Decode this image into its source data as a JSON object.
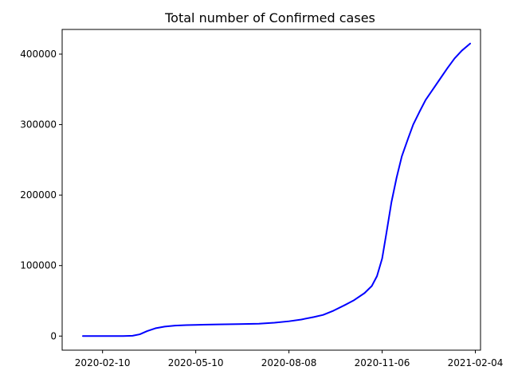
{
  "chart_data": {
    "type": "line",
    "title": "Total number of Confirmed cases",
    "xlabel": "",
    "ylabel": "",
    "x_is_date": true,
    "xlim": [
      "2020-01-02",
      "2021-02-09"
    ],
    "ylim": [
      -20000,
      435000
    ],
    "x_ticks": [
      "2020-02-10",
      "2020-05-10",
      "2020-08-08",
      "2020-11-06",
      "2021-02-04"
    ],
    "y_ticks": [
      0,
      100000,
      200000,
      300000,
      400000
    ],
    "y_tick_labels": [
      "0",
      "100000",
      "200000",
      "300000",
      "400000"
    ],
    "grid": false,
    "legend": "none",
    "series": [
      {
        "color": "#0000ff",
        "points": [
          [
            "2020-01-22",
            0
          ],
          [
            "2020-02-10",
            50
          ],
          [
            "2020-03-01",
            100
          ],
          [
            "2020-03-10",
            500
          ],
          [
            "2020-03-17",
            2500
          ],
          [
            "2020-03-24",
            7000
          ],
          [
            "2020-04-01",
            11000
          ],
          [
            "2020-04-10",
            13500
          ],
          [
            "2020-04-20",
            14800
          ],
          [
            "2020-05-01",
            15500
          ],
          [
            "2020-05-10",
            15900
          ],
          [
            "2020-06-01",
            16500
          ],
          [
            "2020-06-20",
            17000
          ],
          [
            "2020-07-10",
            17500
          ],
          [
            "2020-07-25",
            19000
          ],
          [
            "2020-08-08",
            21000
          ],
          [
            "2020-08-20",
            23500
          ],
          [
            "2020-09-01",
            27000
          ],
          [
            "2020-09-10",
            30000
          ],
          [
            "2020-09-20",
            36000
          ],
          [
            "2020-10-01",
            44000
          ],
          [
            "2020-10-10",
            51000
          ],
          [
            "2020-10-20",
            61000
          ],
          [
            "2020-10-27",
            71000
          ],
          [
            "2020-11-01",
            85000
          ],
          [
            "2020-11-06",
            110000
          ],
          [
            "2020-11-10",
            145000
          ],
          [
            "2020-11-15",
            190000
          ],
          [
            "2020-11-20",
            225000
          ],
          [
            "2020-11-25",
            255000
          ],
          [
            "2020-12-01",
            280000
          ],
          [
            "2020-12-06",
            300000
          ],
          [
            "2020-12-12",
            318000
          ],
          [
            "2020-12-18",
            335000
          ],
          [
            "2020-12-25",
            350000
          ],
          [
            "2021-01-01",
            365000
          ],
          [
            "2021-01-08",
            380000
          ],
          [
            "2021-01-15",
            394000
          ],
          [
            "2021-01-22",
            405000
          ],
          [
            "2021-01-30",
            415000
          ]
        ]
      }
    ]
  }
}
